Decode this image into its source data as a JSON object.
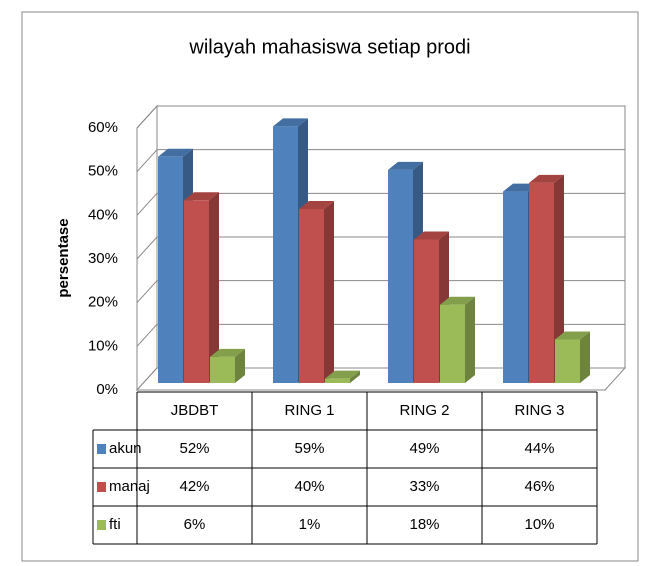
{
  "chart_data": {
    "type": "bar3d",
    "title": "wilayah mahasiswa setiap prodi",
    "y_label": "persentase",
    "categories": [
      "JBDBT",
      "RING 1",
      "RING 2",
      "RING 3"
    ],
    "series": [
      {
        "name": "akun",
        "color": "#4f81bd",
        "values": [
          52,
          59,
          49,
          44
        ],
        "value_labels": [
          "52%",
          "59%",
          "49%",
          "44%"
        ]
      },
      {
        "name": "manaj",
        "color": "#c0504d",
        "values": [
          42,
          40,
          33,
          46
        ],
        "value_labels": [
          "42%",
          "40%",
          "33%",
          "46%"
        ]
      },
      {
        "name": "fti",
        "color": "#9bbb59",
        "values": [
          6,
          1,
          18,
          10
        ],
        "value_labels": [
          "6%",
          "1%",
          "18%",
          "10%"
        ]
      }
    ],
    "ylim": [
      0,
      60
    ],
    "yticks": [
      {
        "value": 0,
        "label": "0%"
      },
      {
        "value": 10,
        "label": "10%"
      },
      {
        "value": 20,
        "label": "20%"
      },
      {
        "value": 30,
        "label": "30%"
      },
      {
        "value": 40,
        "label": "40%"
      },
      {
        "value": 50,
        "label": "50%"
      },
      {
        "value": 60,
        "label": "60%"
      }
    ],
    "grid": true,
    "data_table": true
  }
}
